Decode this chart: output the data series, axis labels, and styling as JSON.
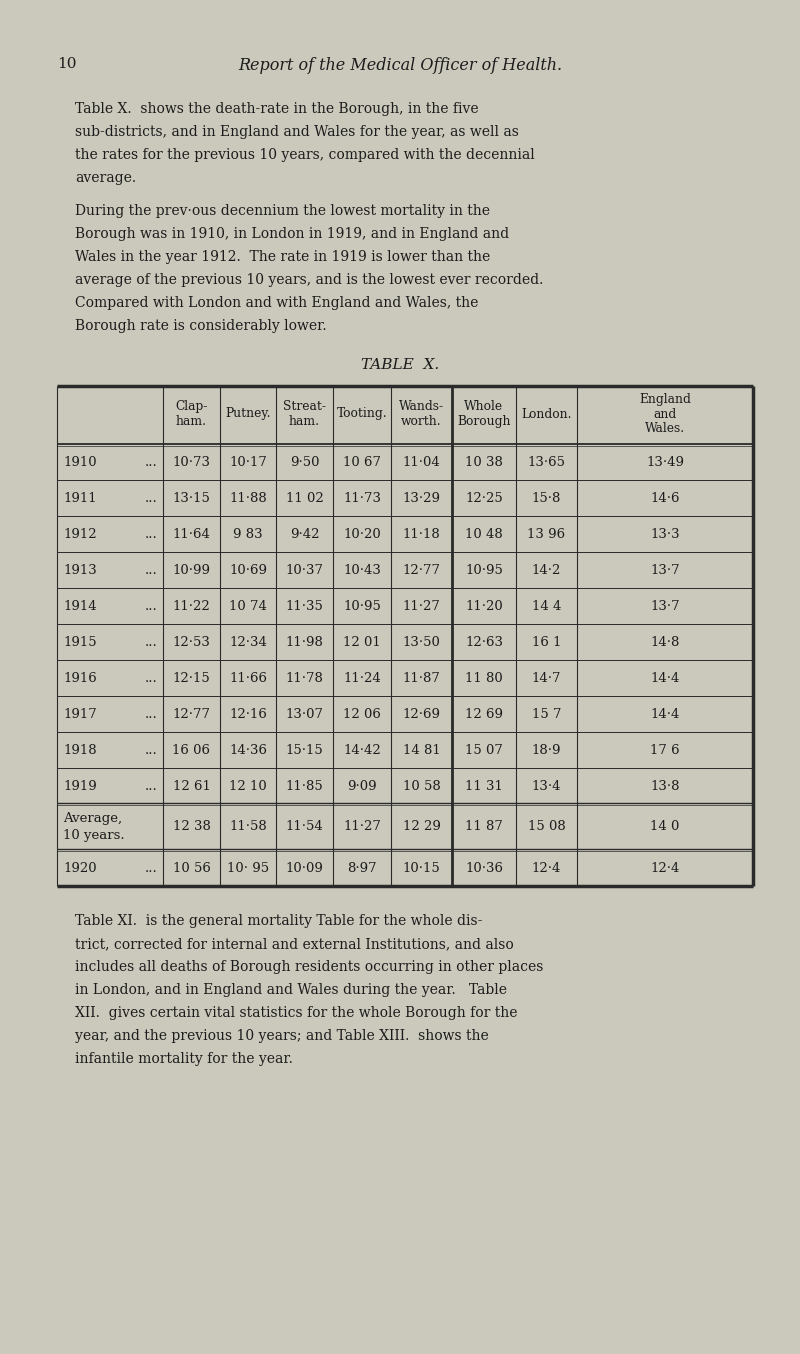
{
  "page_num": "10",
  "page_title": "Report of the Medical Officer of Health.",
  "para1_lines": [
    "Table X.  shows the death-rate in the Borough, in the five",
    "sub-districts, and in England and Wales for the year, as well as",
    "the rates for the previous 10 years, compared with the decennial",
    "average."
  ],
  "para2_lines": [
    "During the prev·ous decennium the lowest mortality in the",
    "Borough was in 1910, in London in 1919, and in England and",
    "Wales in the year 1912.  The rate in 1919 is lower than the",
    "average of the previous 10 years, and is the lowest ever recorded.",
    "Compared with London and with England and Wales, the",
    "Borough rate is considerably lower."
  ],
  "table_title": "TABLE  X.",
  "col_headers": [
    "Clap-\nham.",
    "Putney.",
    "Streat-\nham.",
    "Tooting.",
    "Wands-\nworth.",
    "Whole\nBorough",
    "London.",
    "England\nand\nWales."
  ],
  "row_labels": [
    "1910",
    "1911",
    "1912",
    "1913",
    "1914",
    "1915",
    "1916",
    "1917",
    "1918",
    "1919",
    "Average,\n10 years.",
    "1920"
  ],
  "row_dots": [
    true,
    true,
    true,
    true,
    true,
    true,
    true,
    true,
    true,
    true,
    false,
    true
  ],
  "table_data": [
    [
      "10·73",
      "10·17",
      "9·50",
      "10 67",
      "11·04",
      "10 38",
      "13·65",
      "13·49"
    ],
    [
      "13·15",
      "11·88",
      "11 02",
      "11·73",
      "13·29",
      "12·25",
      "15·8",
      "14·6"
    ],
    [
      "11·64",
      "9 83",
      "9·42",
      "10·20",
      "11·18",
      "10 48",
      "13 96",
      "13·3"
    ],
    [
      "10·99",
      "10·69",
      "10·37",
      "10·43",
      "12·77",
      "10·95",
      "14·2",
      "13·7"
    ],
    [
      "11·22",
      "10 74",
      "11·35",
      "10·95",
      "11·27",
      "11·20",
      "14 4",
      "13·7"
    ],
    [
      "12·53",
      "12·34",
      "11·98",
      "12 01",
      "13·50",
      "12·63",
      "16 1",
      "14·8"
    ],
    [
      "12·15",
      "11·66",
      "11·78",
      "11·24",
      "11·87",
      "11 80",
      "14·7",
      "14·4"
    ],
    [
      "12·77",
      "12·16",
      "13·07",
      "12 06",
      "12·69",
      "12 69",
      "15 7",
      "14·4"
    ],
    [
      "16 06",
      "14·36",
      "15·15",
      "14·42",
      "14 81",
      "15 07",
      "18·9",
      "17 6"
    ],
    [
      "12 61",
      "12 10",
      "11·85",
      "9·09",
      "10 58",
      "11 31",
      "13·4",
      "13·8"
    ],
    [
      "12 38",
      "11·58",
      "11·54",
      "11·27",
      "12 29",
      "11 87",
      "15 08",
      "14 0"
    ],
    [
      "10 56",
      "10· 95",
      "10·09",
      "8·97",
      "10·15",
      "10·36",
      "12·4",
      "12·4"
    ]
  ],
  "para3_lines": [
    "Table XI.  is the general mortality Table for the whole dis-",
    "trict, corrected for internal and external Institutions, and also",
    "includes all deaths of Borough residents occurring in other places",
    "in London, and in England and Wales during the year.   Table",
    "XII.  gives certain vital statistics for the whole Borough for the",
    "year, and the previous 10 years; and Table XIII.  shows the",
    "infantile mortality for the year."
  ],
  "bg_color": "#cbc8bc",
  "text_color": "#1c1c1c",
  "line_color": "#2a2a2a"
}
